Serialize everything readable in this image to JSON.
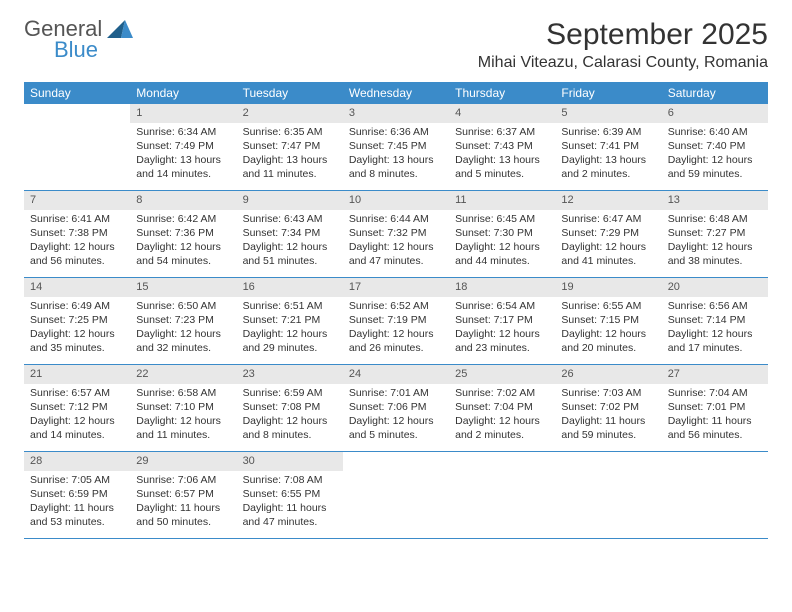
{
  "brand": {
    "general": "General",
    "blue": "Blue"
  },
  "title": "September 2025",
  "location": "Mihai Viteazu, Calarasi County, Romania",
  "colors": {
    "header_bg": "#3b8bc9",
    "header_text": "#ffffff",
    "daynum_bg": "#e8e8e8",
    "border": "#3b8bc9",
    "body_text": "#333333",
    "logo_blue": "#3b8bc9",
    "logo_gray": "#555555"
  },
  "typography": {
    "title_fontsize": 30,
    "location_fontsize": 16,
    "weekday_fontsize": 12,
    "cell_fontsize": 10.5
  },
  "weekdays": [
    "Sunday",
    "Monday",
    "Tuesday",
    "Wednesday",
    "Thursday",
    "Friday",
    "Saturday"
  ],
  "weeks": [
    [
      {
        "n": "",
        "sunrise": "",
        "sunset": "",
        "daylight": ""
      },
      {
        "n": "1",
        "sunrise": "Sunrise: 6:34 AM",
        "sunset": "Sunset: 7:49 PM",
        "daylight": "Daylight: 13 hours and 14 minutes."
      },
      {
        "n": "2",
        "sunrise": "Sunrise: 6:35 AM",
        "sunset": "Sunset: 7:47 PM",
        "daylight": "Daylight: 13 hours and 11 minutes."
      },
      {
        "n": "3",
        "sunrise": "Sunrise: 6:36 AM",
        "sunset": "Sunset: 7:45 PM",
        "daylight": "Daylight: 13 hours and 8 minutes."
      },
      {
        "n": "4",
        "sunrise": "Sunrise: 6:37 AM",
        "sunset": "Sunset: 7:43 PM",
        "daylight": "Daylight: 13 hours and 5 minutes."
      },
      {
        "n": "5",
        "sunrise": "Sunrise: 6:39 AM",
        "sunset": "Sunset: 7:41 PM",
        "daylight": "Daylight: 13 hours and 2 minutes."
      },
      {
        "n": "6",
        "sunrise": "Sunrise: 6:40 AM",
        "sunset": "Sunset: 7:40 PM",
        "daylight": "Daylight: 12 hours and 59 minutes."
      }
    ],
    [
      {
        "n": "7",
        "sunrise": "Sunrise: 6:41 AM",
        "sunset": "Sunset: 7:38 PM",
        "daylight": "Daylight: 12 hours and 56 minutes."
      },
      {
        "n": "8",
        "sunrise": "Sunrise: 6:42 AM",
        "sunset": "Sunset: 7:36 PM",
        "daylight": "Daylight: 12 hours and 54 minutes."
      },
      {
        "n": "9",
        "sunrise": "Sunrise: 6:43 AM",
        "sunset": "Sunset: 7:34 PM",
        "daylight": "Daylight: 12 hours and 51 minutes."
      },
      {
        "n": "10",
        "sunrise": "Sunrise: 6:44 AM",
        "sunset": "Sunset: 7:32 PM",
        "daylight": "Daylight: 12 hours and 47 minutes."
      },
      {
        "n": "11",
        "sunrise": "Sunrise: 6:45 AM",
        "sunset": "Sunset: 7:30 PM",
        "daylight": "Daylight: 12 hours and 44 minutes."
      },
      {
        "n": "12",
        "sunrise": "Sunrise: 6:47 AM",
        "sunset": "Sunset: 7:29 PM",
        "daylight": "Daylight: 12 hours and 41 minutes."
      },
      {
        "n": "13",
        "sunrise": "Sunrise: 6:48 AM",
        "sunset": "Sunset: 7:27 PM",
        "daylight": "Daylight: 12 hours and 38 minutes."
      }
    ],
    [
      {
        "n": "14",
        "sunrise": "Sunrise: 6:49 AM",
        "sunset": "Sunset: 7:25 PM",
        "daylight": "Daylight: 12 hours and 35 minutes."
      },
      {
        "n": "15",
        "sunrise": "Sunrise: 6:50 AM",
        "sunset": "Sunset: 7:23 PM",
        "daylight": "Daylight: 12 hours and 32 minutes."
      },
      {
        "n": "16",
        "sunrise": "Sunrise: 6:51 AM",
        "sunset": "Sunset: 7:21 PM",
        "daylight": "Daylight: 12 hours and 29 minutes."
      },
      {
        "n": "17",
        "sunrise": "Sunrise: 6:52 AM",
        "sunset": "Sunset: 7:19 PM",
        "daylight": "Daylight: 12 hours and 26 minutes."
      },
      {
        "n": "18",
        "sunrise": "Sunrise: 6:54 AM",
        "sunset": "Sunset: 7:17 PM",
        "daylight": "Daylight: 12 hours and 23 minutes."
      },
      {
        "n": "19",
        "sunrise": "Sunrise: 6:55 AM",
        "sunset": "Sunset: 7:15 PM",
        "daylight": "Daylight: 12 hours and 20 minutes."
      },
      {
        "n": "20",
        "sunrise": "Sunrise: 6:56 AM",
        "sunset": "Sunset: 7:14 PM",
        "daylight": "Daylight: 12 hours and 17 minutes."
      }
    ],
    [
      {
        "n": "21",
        "sunrise": "Sunrise: 6:57 AM",
        "sunset": "Sunset: 7:12 PM",
        "daylight": "Daylight: 12 hours and 14 minutes."
      },
      {
        "n": "22",
        "sunrise": "Sunrise: 6:58 AM",
        "sunset": "Sunset: 7:10 PM",
        "daylight": "Daylight: 12 hours and 11 minutes."
      },
      {
        "n": "23",
        "sunrise": "Sunrise: 6:59 AM",
        "sunset": "Sunset: 7:08 PM",
        "daylight": "Daylight: 12 hours and 8 minutes."
      },
      {
        "n": "24",
        "sunrise": "Sunrise: 7:01 AM",
        "sunset": "Sunset: 7:06 PM",
        "daylight": "Daylight: 12 hours and 5 minutes."
      },
      {
        "n": "25",
        "sunrise": "Sunrise: 7:02 AM",
        "sunset": "Sunset: 7:04 PM",
        "daylight": "Daylight: 12 hours and 2 minutes."
      },
      {
        "n": "26",
        "sunrise": "Sunrise: 7:03 AM",
        "sunset": "Sunset: 7:02 PM",
        "daylight": "Daylight: 11 hours and 59 minutes."
      },
      {
        "n": "27",
        "sunrise": "Sunrise: 7:04 AM",
        "sunset": "Sunset: 7:01 PM",
        "daylight": "Daylight: 11 hours and 56 minutes."
      }
    ],
    [
      {
        "n": "28",
        "sunrise": "Sunrise: 7:05 AM",
        "sunset": "Sunset: 6:59 PM",
        "daylight": "Daylight: 11 hours and 53 minutes."
      },
      {
        "n": "29",
        "sunrise": "Sunrise: 7:06 AM",
        "sunset": "Sunset: 6:57 PM",
        "daylight": "Daylight: 11 hours and 50 minutes."
      },
      {
        "n": "30",
        "sunrise": "Sunrise: 7:08 AM",
        "sunset": "Sunset: 6:55 PM",
        "daylight": "Daylight: 11 hours and 47 minutes."
      },
      {
        "n": "",
        "sunrise": "",
        "sunset": "",
        "daylight": ""
      },
      {
        "n": "",
        "sunrise": "",
        "sunset": "",
        "daylight": ""
      },
      {
        "n": "",
        "sunrise": "",
        "sunset": "",
        "daylight": ""
      },
      {
        "n": "",
        "sunrise": "",
        "sunset": "",
        "daylight": ""
      }
    ]
  ]
}
